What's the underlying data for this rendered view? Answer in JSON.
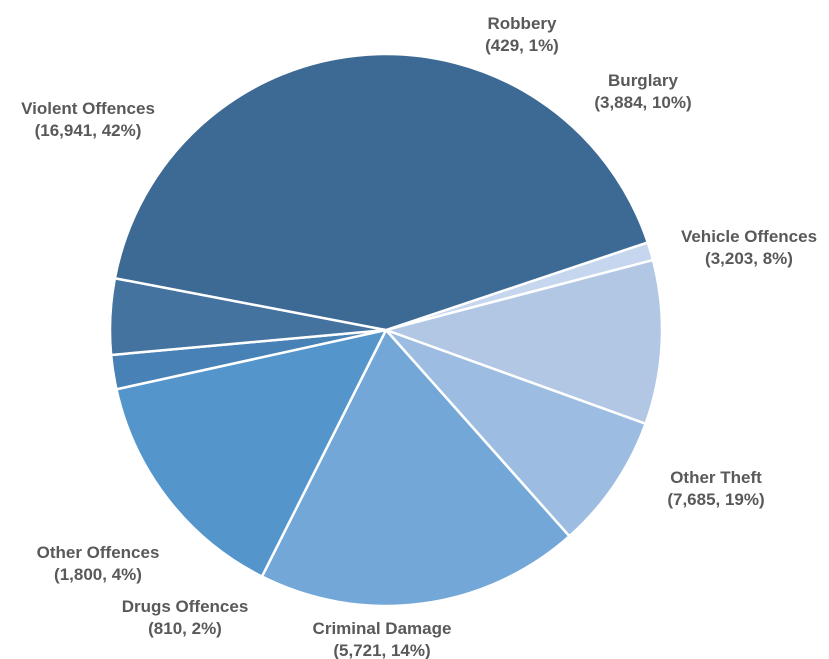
{
  "chart_data": {
    "type": "pie",
    "title": "",
    "slices": [
      {
        "label": "Robbery",
        "value": 429,
        "pct_label": "(429, 1%)",
        "color": "#c5d6ee"
      },
      {
        "label": "Burglary",
        "value": 3884,
        "pct_label": "(3,884, 10%)",
        "color": "#b2c7e4"
      },
      {
        "label": "Vehicle Offences",
        "value": 3203,
        "pct_label": "(3,203, 8%)",
        "color": "#9dbce2"
      },
      {
        "label": "Other Theft",
        "value": 7685,
        "pct_label": "(7,685, 19%)",
        "color": "#72a7d8"
      },
      {
        "label": "Criminal Damage",
        "value": 5721,
        "pct_label": "(5,721, 14%)",
        "color": "#5495cc"
      },
      {
        "label": "Drugs Offences",
        "value": 810,
        "pct_label": "(810, 2%)",
        "color": "#4781b5"
      },
      {
        "label": "Other Offences",
        "value": 1800,
        "pct_label": "(1,800, 4%)",
        "color": "#44739f"
      },
      {
        "label": "Violent Offences",
        "value": 16941,
        "pct_label": "(16,941, 42%)",
        "color": "#3d6a94"
      }
    ]
  }
}
